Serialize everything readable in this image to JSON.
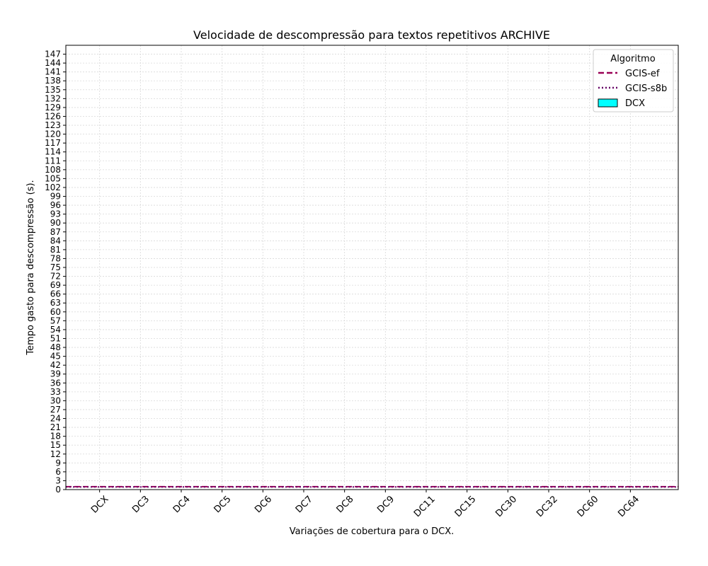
{
  "chart_data": {
    "type": "bar",
    "title": "Velocidade de descompressão para textos repetitivos ARCHIVE",
    "xlabel": "Variações de cobertura para o DCX.",
    "ylabel": "Tempo gasto para descompressão (s).",
    "categories": [
      "DCX",
      "DC3",
      "DC4",
      "DC5",
      "DC6",
      "DC7",
      "DC8",
      "DC9",
      "DC11",
      "DC15",
      "DC30",
      "DC32",
      "DC60",
      "DC64"
    ],
    "ylim": [
      0,
      150
    ],
    "yticks": [
      0,
      3,
      6,
      9,
      12,
      15,
      18,
      21,
      24,
      27,
      30,
      33,
      36,
      39,
      42,
      45,
      48,
      51,
      54,
      57,
      60,
      63,
      66,
      69,
      72,
      75,
      78,
      81,
      84,
      87,
      90,
      93,
      96,
      99,
      102,
      105,
      108,
      111,
      114,
      117,
      120,
      123,
      126,
      129,
      132,
      135,
      138,
      141,
      144,
      147
    ],
    "grid": true,
    "legend": {
      "title": "Algoritmo",
      "placement": "top-right",
      "entries": [
        "GCIS-ef",
        "GCIS-s8b",
        "DCX"
      ]
    },
    "series": [
      {
        "name": "DCX",
        "kind": "bar",
        "color": "#00ffff",
        "values": [
          0,
          0,
          0,
          0,
          0,
          0,
          0,
          0,
          0,
          0,
          0,
          0,
          0,
          0
        ]
      },
      {
        "name": "GCIS-ef",
        "kind": "hline",
        "style": "dashed",
        "color": "#990055",
        "value": 1.0
      },
      {
        "name": "GCIS-s8b",
        "kind": "hline",
        "style": "dotted",
        "color": "#660066",
        "value": 0.9
      }
    ]
  }
}
